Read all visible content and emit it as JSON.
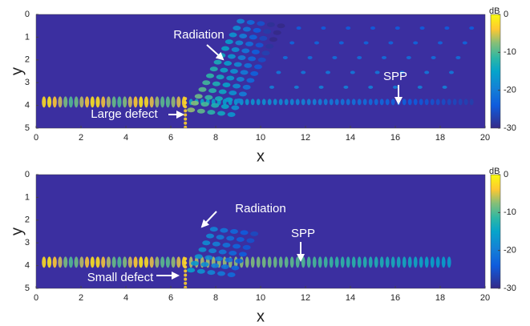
{
  "chart_data": [
    {
      "type": "heatmap",
      "xlabel": "x",
      "ylabel": "y",
      "xlim": [
        0,
        20
      ],
      "ylim": [
        0,
        5
      ],
      "xticks": [
        0,
        2,
        4,
        6,
        8,
        10,
        12,
        14,
        16,
        18,
        20
      ],
      "yticks": [
        0,
        1,
        2,
        3,
        4,
        5
      ],
      "colorbar": {
        "label": "dB",
        "lim": [
          -30,
          0
        ],
        "ticks": [
          0,
          -10,
          -20,
          -30
        ]
      },
      "annotations": [
        "Radiation",
        "SPP",
        "Large defect"
      ]
    },
    {
      "type": "heatmap",
      "xlabel": "x",
      "ylabel": "y",
      "xlim": [
        0,
        20
      ],
      "ylim": [
        0,
        5
      ],
      "xticks": [
        0,
        2,
        4,
        6,
        8,
        10,
        12,
        14,
        16,
        18,
        20
      ],
      "yticks": [
        0,
        1,
        2,
        3,
        4,
        5
      ],
      "colorbar": {
        "label": "dB",
        "lim": [
          -30,
          0
        ],
        "ticks": [
          0,
          -10,
          -20,
          -30
        ]
      },
      "annotations": [
        "Radiation",
        "SPP",
        "Small defect"
      ]
    }
  ]
}
